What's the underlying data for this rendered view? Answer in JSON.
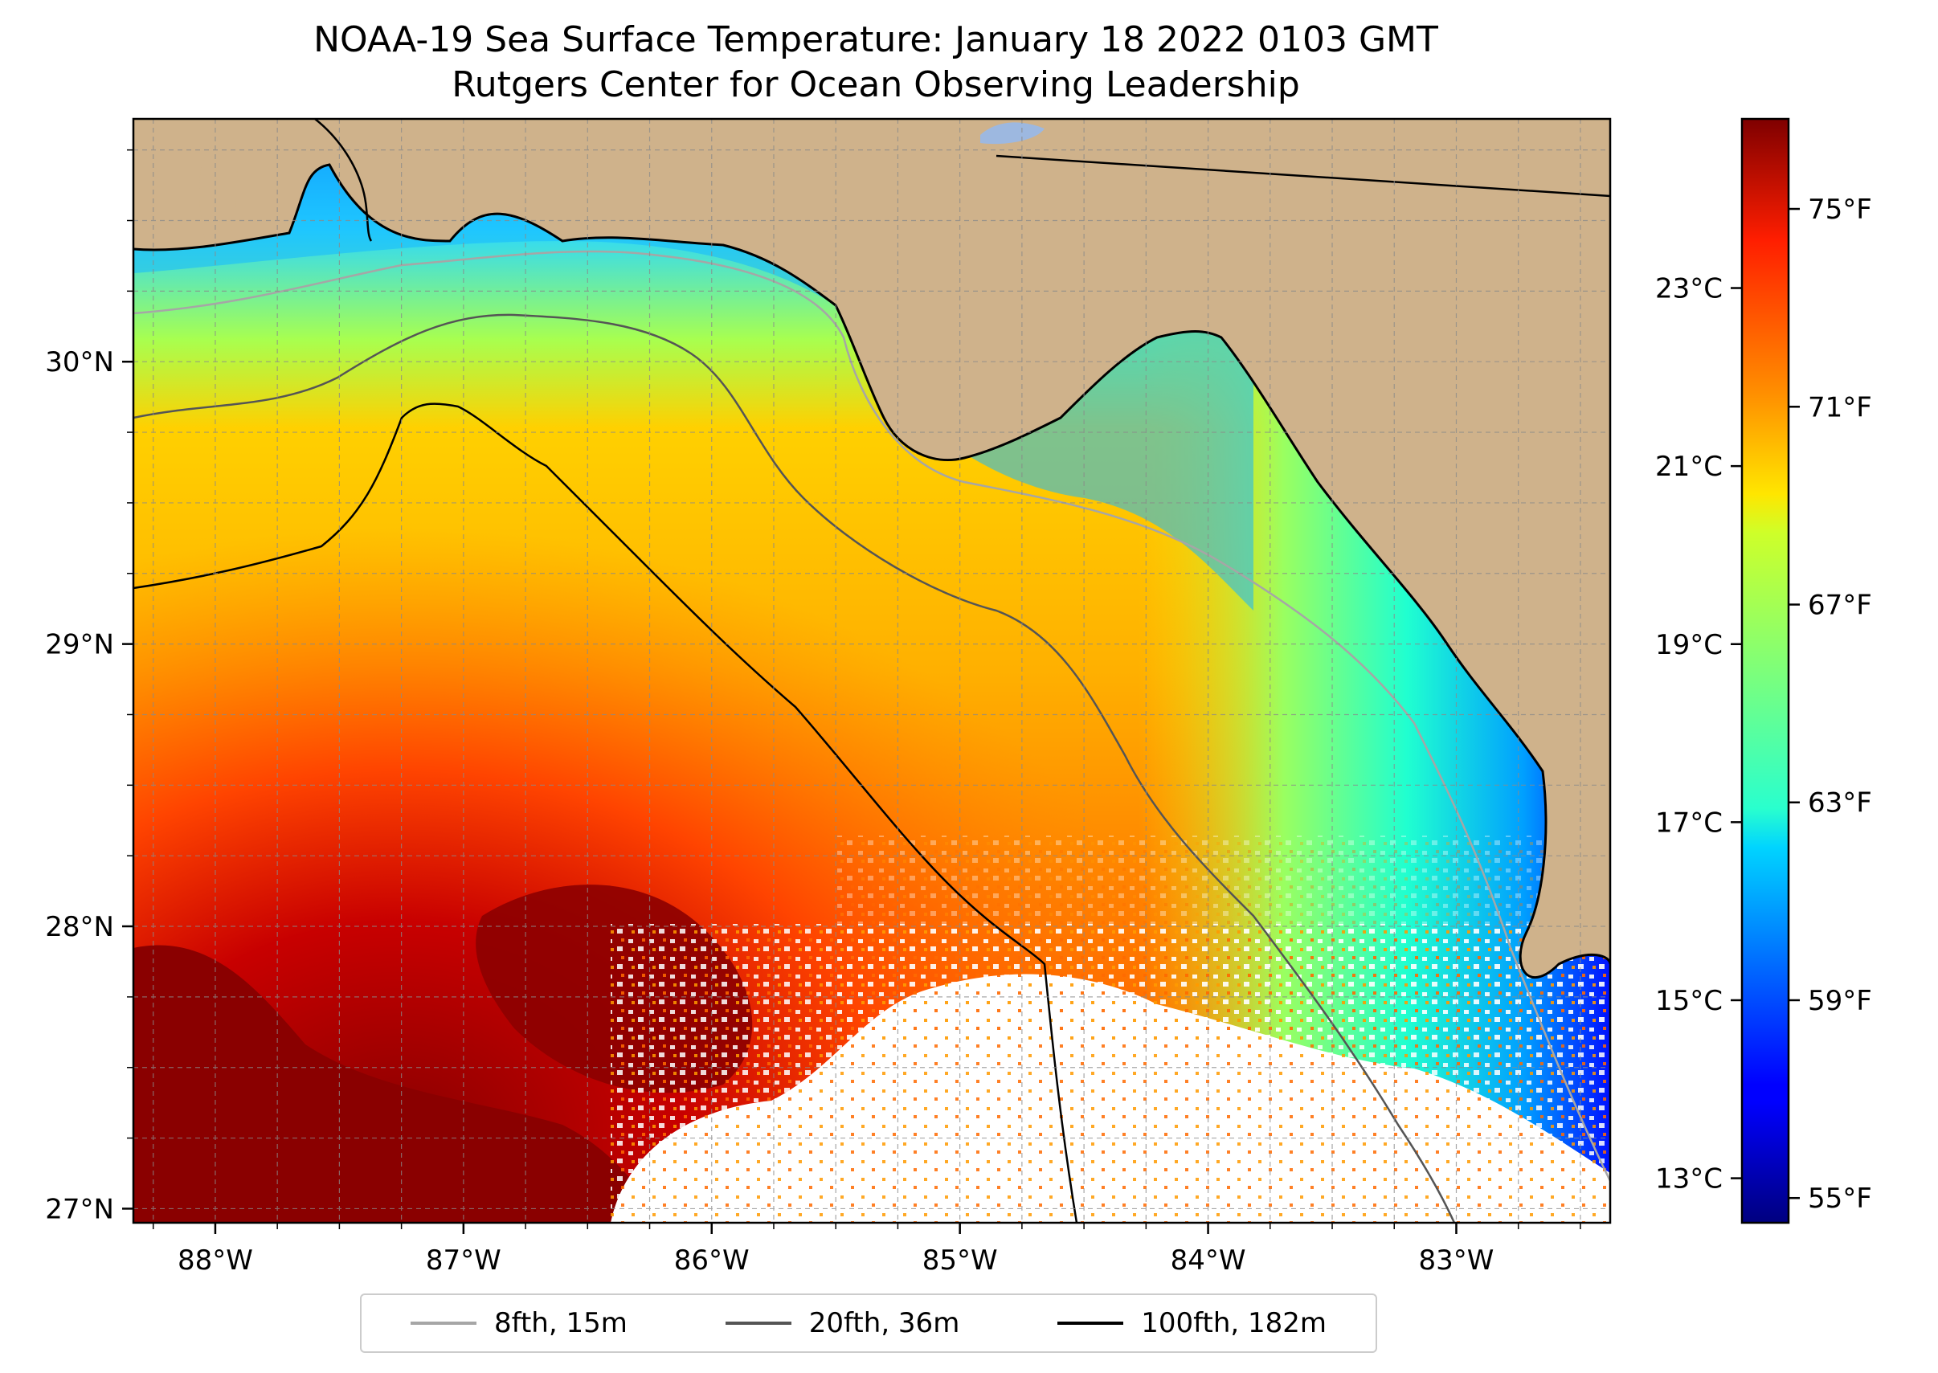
{
  "title": {
    "line1": "NOAA-19 Sea Surface Temperature: January 18 2022 0103 GMT",
    "line2": "Rutgers Center for Ocean Observing Leadership"
  },
  "map": {
    "lon_range": [
      -88.33,
      -82.38
    ],
    "lat_range": [
      26.95,
      30.86
    ],
    "x_tick_labels": [
      {
        "lon": -88,
        "label": "88°W"
      },
      {
        "lon": -87,
        "label": "87°W"
      },
      {
        "lon": -86,
        "label": "86°W"
      },
      {
        "lon": -85,
        "label": "85°W"
      },
      {
        "lon": -84,
        "label": "84°W"
      },
      {
        "lon": -83,
        "label": "83°W"
      }
    ],
    "y_tick_labels": [
      {
        "lat": 30,
        "label": "30°N"
      },
      {
        "lat": 29,
        "label": "29°N"
      },
      {
        "lat": 28,
        "label": "28°N"
      },
      {
        "lat": 27,
        "label": "27°N"
      }
    ],
    "grid": true,
    "land_color": "#cfb28b",
    "no_data_color": "#ffffff"
  },
  "colorbar": {
    "min_c": 12.5,
    "max_c": 24.9,
    "celsius_ticks": [
      {
        "value": 13,
        "label": "13°C"
      },
      {
        "value": 15,
        "label": "15°C"
      },
      {
        "value": 17,
        "label": "17°C"
      },
      {
        "value": 19,
        "label": "19°C"
      },
      {
        "value": 21,
        "label": "21°C"
      },
      {
        "value": 23,
        "label": "23°C"
      }
    ],
    "fahrenheit_ticks": [
      {
        "value": 55,
        "label": "55°F"
      },
      {
        "value": 59,
        "label": "59°F"
      },
      {
        "value": 63,
        "label": "63°F"
      },
      {
        "value": 67,
        "label": "67°F"
      },
      {
        "value": 71,
        "label": "71°F"
      },
      {
        "value": 75,
        "label": "75°F"
      }
    ],
    "colormap": "jet"
  },
  "legend": {
    "items": [
      {
        "label": "8fth, 15m",
        "color": "#a6a6a6"
      },
      {
        "label": "20fth, 36m",
        "color": "#555555"
      },
      {
        "label": "100fth, 182m",
        "color": "#000000"
      }
    ]
  }
}
